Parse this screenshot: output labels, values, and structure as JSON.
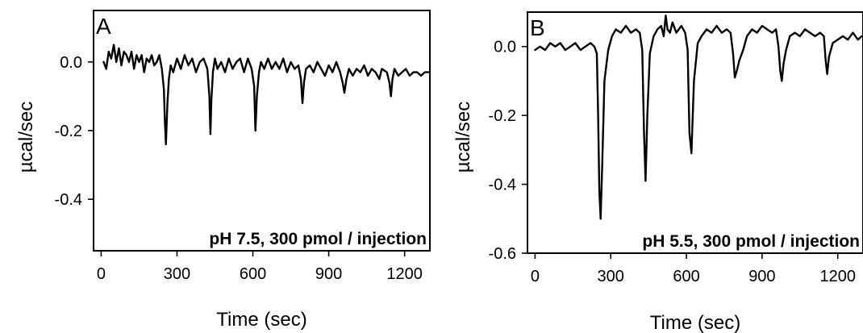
{
  "chart_data": [
    {
      "type": "line",
      "panel_label": "A",
      "annotation": "pH 7.5, 300 pmol / injection",
      "xlabel": "Time (sec)",
      "ylabel": "µcal/sec",
      "xlim": [
        -30,
        1300
      ],
      "ylim": [
        -0.55,
        0.15
      ],
      "xticks": [
        0,
        300,
        600,
        900,
        1200
      ],
      "xtick_labels": [
        "0",
        "300",
        "600",
        "900",
        "1200"
      ],
      "yticks": [
        0.0,
        -0.2,
        -0.4
      ],
      "ytick_labels": [
        "0.0",
        "-0.2",
        "-0.4"
      ],
      "grid": false,
      "series": [
        {
          "x": [
            10,
            20,
            30,
            40,
            50,
            60,
            70,
            80,
            90,
            100,
            110,
            120,
            130,
            140,
            150,
            160,
            170,
            180,
            190,
            200,
            210,
            220,
            230,
            240,
            248,
            252,
            256,
            262,
            268,
            275,
            285,
            300,
            315,
            330,
            345,
            360,
            375,
            390,
            405,
            420,
            428,
            432,
            436,
            442,
            450,
            460,
            475,
            490,
            505,
            520,
            535,
            550,
            565,
            580,
            595,
            605,
            610,
            616,
            624,
            632,
            645,
            660,
            675,
            690,
            705,
            720,
            735,
            750,
            765,
            780,
            790,
            796,
            802,
            810,
            825,
            840,
            855,
            870,
            885,
            900,
            915,
            930,
            945,
            955,
            962,
            970,
            980,
            995,
            1010,
            1025,
            1040,
            1055,
            1070,
            1085,
            1100,
            1110,
            1130,
            1140,
            1146,
            1152,
            1160,
            1175,
            1190,
            1205,
            1220,
            1235,
            1250,
            1265,
            1280,
            1295
          ],
          "y": [
            0.0,
            -0.02,
            0.03,
            0.01,
            0.05,
            0.0,
            0.04,
            -0.01,
            0.03,
            0.02,
            0.0,
            0.03,
            -0.02,
            0.02,
            0.0,
            0.02,
            -0.03,
            0.01,
            0.0,
            0.02,
            -0.01,
            0.0,
            0.02,
            -0.02,
            -0.08,
            -0.17,
            -0.24,
            -0.12,
            -0.05,
            -0.01,
            -0.03,
            0.01,
            -0.02,
            0.02,
            -0.01,
            0.01,
            -0.03,
            0.0,
            0.01,
            -0.02,
            -0.1,
            -0.21,
            -0.11,
            -0.03,
            0.01,
            -0.02,
            0.0,
            -0.03,
            0.01,
            -0.02,
            0.0,
            0.01,
            -0.03,
            0.01,
            -0.02,
            -0.07,
            -0.2,
            -0.1,
            -0.03,
            0.0,
            -0.02,
            0.01,
            -0.02,
            0.0,
            -0.02,
            0.01,
            -0.03,
            0.0,
            -0.02,
            -0.01,
            -0.05,
            -0.12,
            -0.06,
            -0.02,
            -0.01,
            -0.03,
            0.0,
            -0.02,
            -0.04,
            -0.01,
            -0.03,
            0.0,
            -0.03,
            -0.06,
            -0.09,
            -0.05,
            -0.02,
            -0.04,
            -0.02,
            -0.03,
            -0.01,
            -0.04,
            -0.02,
            -0.03,
            -0.05,
            -0.02,
            -0.03,
            -0.06,
            -0.1,
            -0.05,
            -0.02,
            -0.04,
            -0.03,
            -0.02,
            -0.04,
            -0.03,
            -0.03,
            -0.04,
            -0.03,
            -0.03
          ]
        }
      ]
    },
    {
      "type": "line",
      "panel_label": "B",
      "annotation": "pH 5.5, 300 pmol / injection",
      "xlabel": "Time (sec)",
      "ylabel": "µcal/sec",
      "xlim": [
        -30,
        1300
      ],
      "ylim": [
        -0.6,
        0.1
      ],
      "xticks": [
        0,
        300,
        600,
        900,
        1200
      ],
      "xtick_labels": [
        "0",
        "300",
        "600",
        "900",
        "1200"
      ],
      "yticks": [
        0.0,
        -0.2,
        -0.4,
        -0.6
      ],
      "ytick_labels": [
        "0.0",
        "-0.2",
        "-0.4",
        "-0.6"
      ],
      "grid": false,
      "series": [
        {
          "x": [
            0,
            20,
            40,
            60,
            80,
            100,
            120,
            140,
            160,
            180,
            200,
            220,
            235,
            245,
            250,
            255,
            260,
            266,
            275,
            290,
            305,
            320,
            340,
            360,
            380,
            400,
            415,
            425,
            432,
            438,
            445,
            455,
            470,
            485,
            500,
            510,
            518,
            525,
            535,
            545,
            560,
            580,
            595,
            605,
            612,
            620,
            630,
            645,
            660,
            680,
            700,
            720,
            740,
            760,
            775,
            785,
            792,
            800,
            810,
            825,
            840,
            860,
            880,
            900,
            920,
            940,
            955,
            965,
            972,
            978,
            985,
            995,
            1010,
            1030,
            1050,
            1070,
            1090,
            1110,
            1130,
            1145,
            1152,
            1158,
            1165,
            1180,
            1200,
            1220,
            1240,
            1260,
            1280,
            1295
          ],
          "y": [
            -0.01,
            0.0,
            -0.01,
            0.01,
            0.0,
            0.01,
            -0.01,
            0.0,
            0.01,
            -0.01,
            0.0,
            0.01,
            0.0,
            -0.02,
            -0.2,
            -0.42,
            -0.5,
            -0.35,
            -0.1,
            -0.01,
            0.03,
            0.05,
            0.04,
            0.06,
            0.04,
            0.05,
            0.04,
            -0.01,
            -0.25,
            -0.39,
            -0.2,
            -0.02,
            0.03,
            0.05,
            0.06,
            0.03,
            0.09,
            0.05,
            0.04,
            0.07,
            0.04,
            0.06,
            0.04,
            -0.01,
            -0.25,
            -0.31,
            -0.1,
            0.01,
            0.03,
            0.05,
            0.04,
            0.06,
            0.04,
            0.05,
            0.04,
            -0.02,
            -0.09,
            -0.07,
            -0.04,
            -0.01,
            0.03,
            0.05,
            0.04,
            0.06,
            0.05,
            0.04,
            0.05,
            0.0,
            -0.07,
            -0.1,
            -0.05,
            -0.01,
            0.03,
            0.04,
            0.03,
            0.05,
            0.04,
            0.03,
            0.04,
            0.03,
            -0.04,
            -0.08,
            -0.03,
            0.01,
            0.02,
            0.03,
            0.02,
            0.04,
            0.02,
            0.03
          ]
        }
      ]
    }
  ]
}
